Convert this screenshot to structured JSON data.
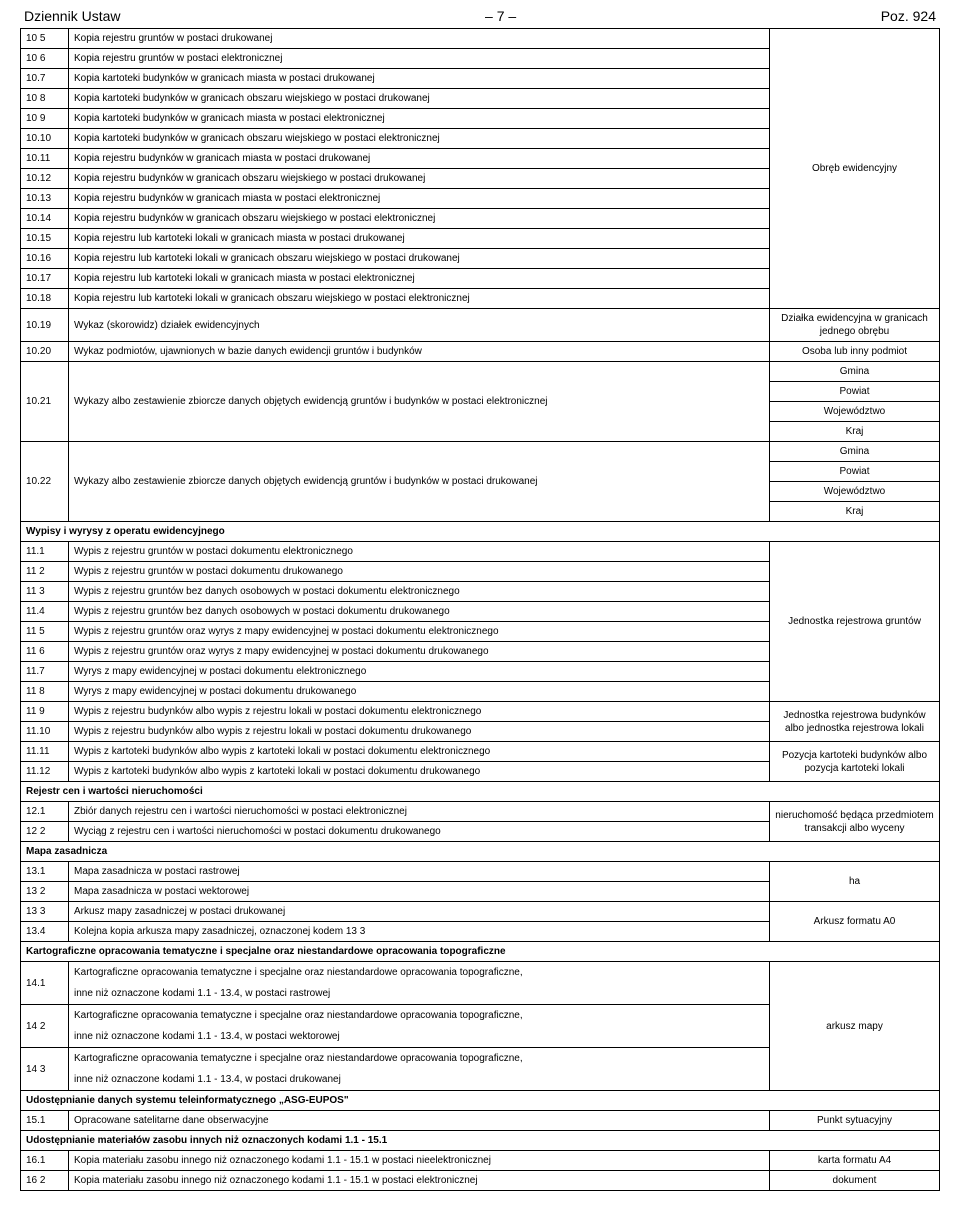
{
  "header": {
    "left": "Dziennik Ustaw",
    "center": "– 7 –",
    "right": "Poz. 924"
  },
  "sections": [
    {
      "rows": [
        {
          "num": "10 5",
          "desc": "Kopia rejestru gruntów w postaci drukowanej"
        },
        {
          "num": "10 6",
          "desc": "Kopia rejestru gruntów w postaci elektronicznej"
        },
        {
          "num": "10.7",
          "desc": "Kopia kartoteki budynków w granicach miasta w postaci drukowanej"
        },
        {
          "num": "10 8",
          "desc": "Kopia kartoteki budynków w granicach obszaru wiejskiego w postaci drukowanej"
        },
        {
          "num": "10 9",
          "desc": "Kopia kartoteki budynków w granicach miasta w postaci elektronicznej"
        },
        {
          "num": "10.10",
          "desc": "Kopia kartoteki budynków w granicach obszaru wiejskiego w postaci elektronicznej"
        },
        {
          "num": "10.11",
          "desc": "Kopia rejestru budynków w granicach miasta w postaci drukowanej"
        },
        {
          "num": "10.12",
          "desc": "Kopia rejestru budynków w granicach obszaru wiejskiego w postaci drukowanej"
        },
        {
          "num": "10.13",
          "desc": "Kopia rejestru budynków w granicach miasta w postaci elektronicznej"
        },
        {
          "num": "10.14",
          "desc": "Kopia rejestru budynków w granicach obszaru wiejskiego w postaci elektronicznej"
        },
        {
          "num": "10.15",
          "desc": "Kopia rejestru lub kartoteki lokali w granicach miasta w postaci drukowanej"
        },
        {
          "num": "10.16",
          "desc": "Kopia rejestru lub kartoteki lokali w granicach obszaru wiejskiego w postaci drukowanej"
        },
        {
          "num": "10.17",
          "desc": "Kopia rejestru lub kartoteki lokali w granicach miasta w postaci elektronicznej"
        },
        {
          "num": "10.18",
          "desc": "Kopia rejestru lub kartoteki lokali w granicach obszaru wiejskiego w postaci elektronicznej"
        }
      ],
      "unit": "Obręb ewidencyjny"
    },
    {
      "rows": [
        {
          "num": "10.19",
          "desc": "Wykaz (skorowidz) działek ewidencyjnych"
        }
      ],
      "unit": "Działka ewidencyjna w granicach jednego obrębu"
    },
    {
      "rows": [
        {
          "num": "10.20",
          "desc": "Wykaz podmiotów, ujawnionych w bazie danych ewidencji gruntów i budynków"
        }
      ],
      "unit": "Osoba lub inny podmiot"
    },
    {
      "rows": [
        {
          "num": "10.21",
          "desc": "Wykazy albo zestawienie zbiorcze danych objętych ewidencją gruntów i budynków w postaci elektronicznej"
        }
      ],
      "units": [
        "Gmina",
        "Powiat",
        "Województwo",
        "Kraj"
      ]
    },
    {
      "rows": [
        {
          "num": "10.22",
          "desc": "Wykazy albo zestawienie zbiorcze danych objętych ewidencją gruntów i budynków w postaci drukowanej"
        }
      ],
      "units": [
        "Gmina",
        "Powiat",
        "Województwo",
        "Kraj"
      ]
    },
    {
      "header": "Wypisy i wyrysy z operatu ewidencyjnego",
      "rows": [
        {
          "num": "11.1",
          "desc": "Wypis z rejestru gruntów w postaci dokumentu elektronicznego"
        },
        {
          "num": "11 2",
          "desc": "Wypis z rejestru gruntów w postaci dokumentu drukowanego"
        },
        {
          "num": "11 3",
          "desc": "Wypis z rejestru gruntów bez danych osobowych w postaci dokumentu elektronicznego"
        },
        {
          "num": "11.4",
          "desc": "Wypis z rejestru gruntów bez danych osobowych w postaci dokumentu drukowanego"
        },
        {
          "num": "11 5",
          "desc": "Wypis z rejestru gruntów oraz wyrys z mapy ewidencyjnej w postaci dokumentu elektronicznego"
        },
        {
          "num": "11 6",
          "desc": "Wypis z rejestru gruntów oraz wyrys z mapy ewidencyjnej w postaci dokumentu drukowanego"
        },
        {
          "num": "11.7",
          "desc": "Wyrys z mapy ewidencyjnej w postaci dokumentu elektronicznego"
        },
        {
          "num": "11 8",
          "desc": "Wyrys z mapy ewidencyjnej w postaci dokumentu drukowanego"
        }
      ],
      "unit": "Jednostka rejestrowa gruntów"
    },
    {
      "rows": [
        {
          "num": "11 9",
          "desc": "Wypis z rejestru budynków albo wypis z rejestru lokali w postaci dokumentu elektronicznego"
        },
        {
          "num": "11.10",
          "desc": "Wypis z rejestru budynków albo wypis z rejestru lokali w postaci dokumentu drukowanego"
        }
      ],
      "unit": "Jednostka rejestrowa budynków albo jednostka rejestrowa lokali"
    },
    {
      "rows": [
        {
          "num": "11.11",
          "desc": "Wypis z kartoteki budynków albo wypis z kartoteki lokali w postaci dokumentu elektronicznego"
        },
        {
          "num": "11.12",
          "desc": "Wypis z kartoteki budynków albo wypis z kartoteki lokali w postaci dokumentu drukowanego"
        }
      ],
      "unit": "Pozycja kartoteki budynków albo pozycja kartoteki lokali"
    },
    {
      "header": "Rejestr cen i wartości nieruchomości",
      "rows": [
        {
          "num": "12.1",
          "desc": "Zbiór danych rejestru cen i wartości nieruchomości w postaci elektronicznej"
        },
        {
          "num": "12 2",
          "desc": "Wyciąg z rejestru cen i wartości nieruchomości w postaci dokumentu drukowanego"
        }
      ],
      "unit": "nieruchomość będąca przedmiotem transakcji albo wyceny"
    },
    {
      "header": "Mapa zasadnicza",
      "rows": [
        {
          "num": "13.1",
          "desc": "Mapa zasadnicza w postaci rastrowej"
        },
        {
          "num": "13 2",
          "desc": "Mapa zasadnicza w postaci wektorowej"
        }
      ],
      "unit": "ha"
    },
    {
      "rows": [
        {
          "num": "13 3",
          "desc": "Arkusz mapy zasadniczej w postaci drukowanej"
        },
        {
          "num": "13.4",
          "desc": "Kolejna kopia arkusza mapy zasadniczej, oznaczonej kodem 13 3"
        }
      ],
      "unit": "Arkusz formatu A0"
    },
    {
      "header": "Kartograficzne opracowania tematyczne i specjalne oraz niestandardowe opracowania topograficzne",
      "rows": [
        {
          "num": "14.1",
          "desc": "Kartograficzne opracowania tematyczne i specjalne oraz niestandardowe opracowania topograficzne,\ninne niż oznaczone kodami 1.1 - 13.4, w postaci rastrowej"
        },
        {
          "num": "14 2",
          "desc": "Kartograficzne opracowania tematyczne i specjalne oraz niestandardowe opracowania topograficzne,\ninne niż oznaczone kodami 1.1 - 13.4, w postaci wektorowej"
        },
        {
          "num": "14 3",
          "desc": "Kartograficzne opracowania tematyczne i specjalne oraz niestandardowe opracowania topograficzne,\ninne niż oznaczone kodami 1.1 - 13.4, w postaci drukowanej"
        }
      ],
      "unit": "arkusz mapy"
    },
    {
      "header": "Udostępnianie danych systemu teleinformatycznego „ASG-EUPOS\"",
      "rows": [
        {
          "num": "15.1",
          "desc": "Opracowane satelitarne dane obserwacyjne"
        }
      ],
      "unit": "Punkt sytuacyjny"
    },
    {
      "header": "Udostępnianie materiałów zasobu innych niż oznaczonych kodami 1.1 - 15.1",
      "rows": [
        {
          "num": "16.1",
          "desc": "Kopia materiału zasobu innego niż oznaczonego kodami 1.1 - 15.1  w postaci nieelektronicznej"
        }
      ],
      "unit": "karta formatu A4"
    },
    {
      "rows": [
        {
          "num": "16 2",
          "desc": "Kopia materiału zasobu innego niż oznaczonego kodami 1.1 - 15.1  w postaci elektronicznej"
        }
      ],
      "unit": "dokument"
    }
  ]
}
